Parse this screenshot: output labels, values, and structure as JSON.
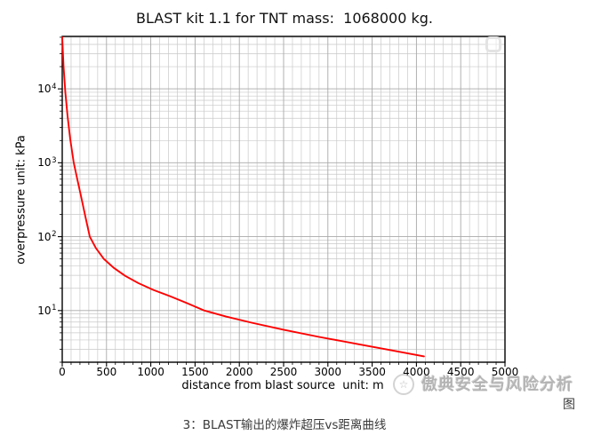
{
  "page": {
    "caption_prefix": "图",
    "caption": "3：BLAST输出的爆炸超压vs距离曲线",
    "watermark": {
      "icon": "circle-star-logo",
      "icon_glyph": "☆",
      "text": "傲典安全与风险分析"
    }
  },
  "chart_data": {
    "type": "line",
    "title": "BLAST kit 1.1 for TNT mass:  1068000 kg.",
    "xlabel": "distance from blast source  unit: m",
    "ylabel": "overpressure unit: kPa",
    "xscale": "linear",
    "yscale": "log",
    "xlim": [
      0,
      5000
    ],
    "ylim": [
      2.0,
      51300
    ],
    "x_major_ticks": [
      0,
      500,
      1000,
      1500,
      2000,
      2500,
      3000,
      3500,
      4000,
      4500,
      5000
    ],
    "x_minor_step": 100,
    "y_tick_base": "10",
    "y_major_tick_exponents": [
      4,
      3,
      2,
      1
    ],
    "grid": "both",
    "legend": "none",
    "colors": {
      "curve": "#ff0000",
      "grid_major": "#a9a9a9",
      "grid_minor": "#c9c9c9",
      "spine": "#000000"
    },
    "series": [
      {
        "name": "blast overpressure vs distance",
        "points": [
          [
            0,
            50000
          ],
          [
            15,
            20000
          ],
          [
            35,
            9000
          ],
          [
            60,
            4300
          ],
          [
            90,
            2100
          ],
          [
            130,
            1000
          ],
          [
            170,
            600
          ],
          [
            215,
            340
          ],
          [
            260,
            190
          ],
          [
            311,
            100
          ],
          [
            380,
            70
          ],
          [
            470,
            50
          ],
          [
            580,
            38
          ],
          [
            710,
            29.5
          ],
          [
            860,
            23.5
          ],
          [
            1030,
            19
          ],
          [
            1220,
            15.6
          ],
          [
            1410,
            12.6
          ],
          [
            1606,
            10
          ],
          [
            1850,
            8.3
          ],
          [
            2150,
            6.8
          ],
          [
            2500,
            5.5
          ],
          [
            2900,
            4.4
          ],
          [
            3350,
            3.5
          ],
          [
            3750,
            2.85
          ],
          [
            4085,
            2.4
          ]
        ]
      }
    ]
  }
}
